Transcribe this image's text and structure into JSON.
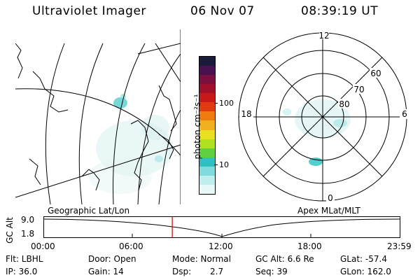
{
  "header": {
    "instrument": "Ultraviolet Imager",
    "date": "06 Nov 07",
    "time": "08:39:19 UT"
  },
  "colorbar": {
    "unit_label": "photon cm⁻²s⁻¹",
    "tick_labels": [
      "100",
      "10"
    ],
    "colors_top_to_bottom": [
      "#1a1a3a",
      "#4a1050",
      "#7a1040",
      "#a0102a",
      "#c81818",
      "#e03a10",
      "#ee7a10",
      "#f0b020",
      "#e8e020",
      "#b0e020",
      "#60d040",
      "#30c0c0",
      "#80dcdc",
      "#c0eeee",
      "#e8f8f8"
    ]
  },
  "polar_plot": {
    "mlt_labels": {
      "top": "12",
      "left": "18",
      "right": "6",
      "bottom": "0"
    },
    "lat_labels": [
      "60",
      "70",
      "80"
    ]
  },
  "panel_labels": {
    "left": "Geographic Lat/Lon",
    "right": "Apex MLat/MLT"
  },
  "altitude_strip": {
    "axis_title": "GC Alt",
    "y_ticks": [
      "9.0",
      "1.8"
    ],
    "x_ticks": [
      "00:00",
      "06:00",
      "12:00",
      "18:00",
      "23:59"
    ],
    "current_time_fraction": 0.361
  },
  "info": {
    "flt": "Flt: LBHL",
    "ip": "IP: 36.0",
    "door": "Door: Open",
    "gain": "Gain: 14",
    "mode": "Mode: Normal",
    "dsp_label": "Dsp:",
    "dsp_value": "2.7",
    "gc_alt": "GC Alt: 6.6 Re",
    "seq": "Seq: 39",
    "glat": "GLat: -57.4",
    "glon": "GLon: 162.0"
  }
}
